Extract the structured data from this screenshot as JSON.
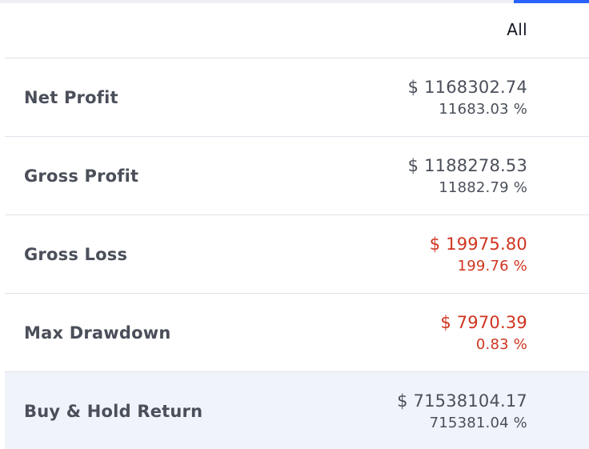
{
  "header": {
    "column_label": "All"
  },
  "rows": [
    {
      "label": "Net Profit",
      "amount": "$ 1168302.74",
      "percent": "11683.03 %",
      "negative": false
    },
    {
      "label": "Gross Profit",
      "amount": "$ 1188278.53",
      "percent": "11882.79 %",
      "negative": false
    },
    {
      "label": "Gross Loss",
      "amount": "$ 19975.80",
      "percent": "199.76 %",
      "negative": true
    },
    {
      "label": "Max Drawdown",
      "amount": "$ 7970.39",
      "percent": "0.83 %",
      "negative": true
    },
    {
      "label": "Buy & Hold Return",
      "amount": "$ 71538104.17",
      "percent": "715381.04 %",
      "negative": false
    }
  ],
  "colors": {
    "accent": "#2962ff",
    "text": "#4a4f5a",
    "negative": "#d0341f",
    "highlight_row": "#f0f3fa"
  }
}
